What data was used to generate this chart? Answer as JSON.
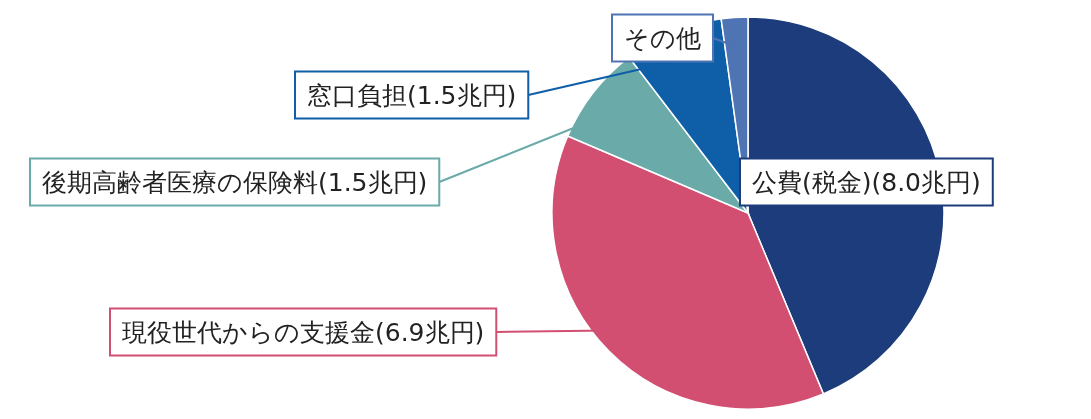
{
  "chart_data": {
    "type": "pie",
    "categories": [
      "公費(税金)",
      "現役世代からの支援金",
      "後期高齢者医療の保険料",
      "窓口負担",
      "その他"
    ],
    "values": [
      8.0,
      6.9,
      1.5,
      1.5,
      0.4
    ],
    "value_labels": [
      "(8.0兆円)",
      "(6.9兆円)",
      "(1.5兆円)",
      "(1.5兆円)",
      null
    ],
    "colors": [
      "#1d3c7c",
      "#d24f72",
      "#6aaaa8",
      "#0f5ea8",
      "#4f74b4"
    ]
  }
}
